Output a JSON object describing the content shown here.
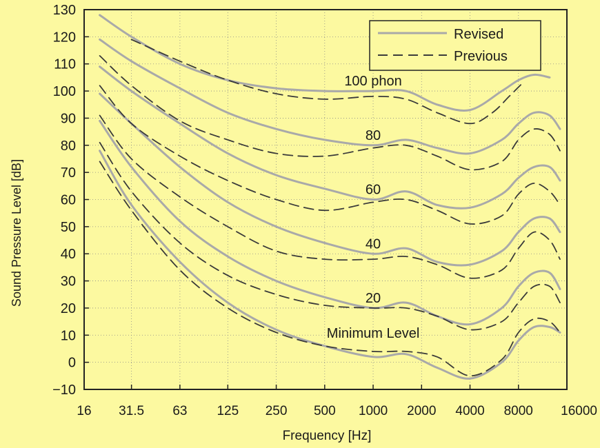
{
  "chart_data": {
    "type": "line",
    "title": "",
    "xlabel": "Frequency [Hz]",
    "ylabel": "Sound Pressure Level [dB]",
    "x_scale": "log",
    "xlim": [
      16,
      16000
    ],
    "ylim": [
      -10,
      130
    ],
    "x_ticks": [
      "16",
      "31.5",
      "63",
      "125",
      "250",
      "500",
      "1000",
      "2000",
      "4000",
      "8000",
      "16000"
    ],
    "x_tick_values": [
      16,
      31.5,
      63,
      125,
      250,
      500,
      1000,
      2000,
      4000,
      8000,
      16000
    ],
    "y_ticks": [
      "130",
      "120",
      "110",
      "100",
      "90",
      "80",
      "70",
      "60",
      "50",
      "40",
      "30",
      "20",
      "10",
      "0",
      "−10"
    ],
    "y_tick_values": [
      130,
      120,
      110,
      100,
      90,
      80,
      70,
      60,
      50,
      40,
      30,
      20,
      10,
      0,
      -10
    ],
    "grid": true,
    "legend": {
      "placement": "top-right",
      "entries": [
        {
          "label": "Revised",
          "style": "solid"
        },
        {
          "label": "Previous",
          "style": "dashed"
        }
      ]
    },
    "colors": {
      "background": "#fcf9a0",
      "revised": "#a9a9a9",
      "previous": "#3a3a3a",
      "grid": "#888888",
      "axis": "#222222"
    },
    "annotations": [
      {
        "text": "100 phon",
        "x": 1000,
        "y": 102
      },
      {
        "text": "80",
        "x": 1000,
        "y": 82
      },
      {
        "text": "60",
        "x": 1000,
        "y": 62
      },
      {
        "text": "40",
        "x": 1000,
        "y": 42
      },
      {
        "text": "20",
        "x": 1000,
        "y": 22
      },
      {
        "text": "Minimum Level",
        "x": 1000,
        "y": 9
      }
    ],
    "series": [
      {
        "group": "Revised",
        "level": "100 phon",
        "x": [
          20,
          31.5,
          63,
          125,
          250,
          500,
          1000,
          1600,
          2500,
          4000,
          6300,
          8000,
          10000,
          12500
        ],
        "y": [
          128,
          120,
          110,
          104,
          101,
          100,
          100,
          100,
          95,
          93,
          100,
          104,
          106,
          105
        ]
      },
      {
        "group": "Revised",
        "level": "80",
        "x": [
          20,
          31.5,
          63,
          125,
          250,
          500,
          1000,
          1600,
          2500,
          4000,
          6300,
          8000,
          10000,
          12500,
          14500
        ],
        "y": [
          119,
          111,
          101,
          92,
          86,
          82,
          80,
          82,
          79,
          77,
          82,
          88,
          92,
          91,
          86
        ]
      },
      {
        "group": "Revised",
        "level": "60",
        "x": [
          20,
          31.5,
          63,
          125,
          250,
          500,
          1000,
          1600,
          2500,
          4000,
          6300,
          8000,
          10000,
          12500,
          14500
        ],
        "y": [
          109,
          100,
          88,
          77,
          69,
          64,
          60,
          63,
          58,
          57,
          62,
          68,
          72,
          72,
          67
        ]
      },
      {
        "group": "Revised",
        "level": "40",
        "x": [
          20,
          31.5,
          63,
          125,
          250,
          500,
          1000,
          1600,
          2500,
          4000,
          6300,
          8000,
          10000,
          12500,
          14500
        ],
        "y": [
          99,
          88,
          72,
          59,
          50,
          44,
          40,
          42,
          37,
          36,
          41,
          48,
          53,
          53,
          48
        ]
      },
      {
        "group": "Revised",
        "level": "20",
        "x": [
          20,
          31.5,
          63,
          125,
          250,
          500,
          1000,
          1600,
          2500,
          4000,
          6300,
          8000,
          10000,
          12500,
          14500
        ],
        "y": [
          89,
          72,
          52,
          39,
          30,
          24,
          20,
          22,
          17,
          14,
          20,
          28,
          33,
          33,
          27
        ]
      },
      {
        "group": "Revised",
        "level": "Minimum Level",
        "x": [
          20,
          31.5,
          63,
          125,
          250,
          500,
          1000,
          1600,
          2500,
          4000,
          6300,
          8000,
          10000,
          12500,
          14500
        ],
        "y": [
          78,
          58,
          37,
          22,
          12,
          6,
          2,
          3,
          -2,
          -6,
          0,
          8,
          13,
          13,
          11
        ]
      },
      {
        "group": "Previous",
        "level": "100 phon",
        "x": [
          31.5,
          63,
          125,
          250,
          500,
          1000,
          1600,
          2500,
          4000,
          5500,
          7000,
          8500
        ],
        "y": [
          119,
          111,
          104,
          99,
          97,
          98,
          97,
          92,
          88,
          92,
          98,
          103
        ]
      },
      {
        "group": "Previous",
        "level": "80",
        "x": [
          20,
          31.5,
          63,
          125,
          250,
          500,
          1000,
          1600,
          2500,
          4000,
          6300,
          8000,
          10000,
          12500,
          14500
        ],
        "y": [
          113,
          102,
          89,
          82,
          77,
          76,
          79,
          80,
          76,
          71,
          74,
          82,
          86,
          84,
          78
        ]
      },
      {
        "group": "Previous",
        "level": "60",
        "x": [
          20,
          31.5,
          63,
          125,
          250,
          500,
          1000,
          1600,
          2500,
          4000,
          6300,
          8000,
          10000,
          12500,
          14500
        ],
        "y": [
          102,
          88,
          76,
          67,
          60,
          56,
          59,
          60,
          56,
          51,
          54,
          62,
          66,
          63,
          58
        ]
      },
      {
        "group": "Previous",
        "level": "40",
        "x": [
          20,
          31.5,
          63,
          125,
          250,
          500,
          1000,
          1600,
          2500,
          4000,
          6300,
          8000,
          10000,
          12500,
          14500
        ],
        "y": [
          91,
          75,
          61,
          50,
          41,
          38,
          38,
          39,
          36,
          31,
          34,
          42,
          48,
          45,
          38
        ]
      },
      {
        "group": "Previous",
        "level": "20",
        "x": [
          20,
          31.5,
          63,
          125,
          250,
          500,
          1000,
          1600,
          2500,
          4000,
          6300,
          8000,
          10000,
          12500,
          14500
        ],
        "y": [
          81,
          63,
          44,
          32,
          25,
          21,
          20,
          20,
          17,
          12,
          15,
          22,
          28,
          28,
          22
        ]
      },
      {
        "group": "Previous",
        "level": "Minimum Level",
        "x": [
          20,
          31.5,
          63,
          125,
          250,
          500,
          1000,
          1600,
          2500,
          4000,
          6300,
          8000,
          10000,
          12500,
          14500
        ],
        "y": [
          74,
          56,
          34,
          20,
          11,
          6,
          4,
          4,
          2,
          -5,
          1,
          11,
          16,
          15,
          11
        ]
      }
    ]
  }
}
